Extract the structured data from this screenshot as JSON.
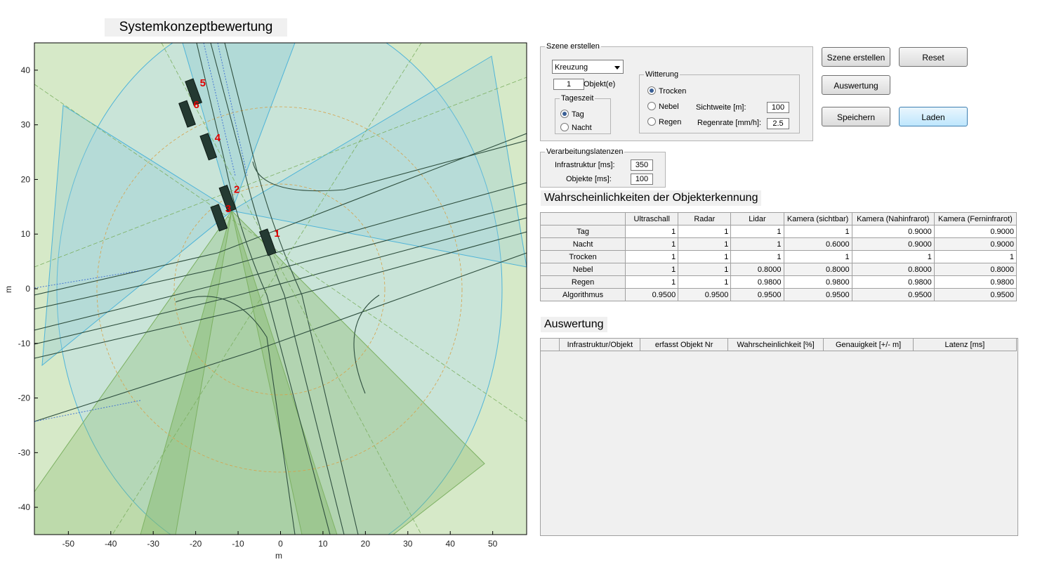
{
  "plot": {
    "title": "Systemkonzeptbewertung",
    "xlabel": "m",
    "ylabel": "m",
    "xticks": [
      -50,
      -40,
      -30,
      -20,
      -10,
      0,
      10,
      20,
      30,
      40,
      50
    ],
    "yticks": [
      40,
      30,
      20,
      10,
      0,
      -10,
      -20,
      -30,
      -40
    ],
    "xlim": [
      -58,
      58
    ],
    "ylim": [
      -45,
      45
    ],
    "objects": [
      {
        "label": "1",
        "x": -3,
        "y": 8.5
      },
      {
        "label": "2",
        "x": -12.5,
        "y": 16.5
      },
      {
        "label": "3",
        "x": -14.5,
        "y": 13
      },
      {
        "label": "4",
        "x": -17,
        "y": 26
      },
      {
        "label": "5",
        "x": -20.5,
        "y": 36
      },
      {
        "label": "6",
        "x": -22,
        "y": 32
      }
    ]
  },
  "scene": {
    "title": "Szene erstellen",
    "dropdown_value": "Kreuzung",
    "object_count": "1",
    "object_label": "Objekt(e)",
    "daytime": {
      "title": "Tageszeit",
      "options": [
        "Tag",
        "Nacht"
      ],
      "selected": 0
    },
    "weather": {
      "title": "Witterung",
      "options": [
        "Trocken",
        "Nebel",
        "Regen"
      ],
      "selected": 0,
      "visibility_label": "Sichtweite [m]:",
      "visibility_value": "100",
      "rainrate_label": "Regenrate [mm/h]:",
      "rainrate_value": "2.5"
    }
  },
  "buttons": {
    "create": "Szene erstellen",
    "reset": "Reset",
    "evaluate": "Auswertung",
    "save": "Speichern",
    "load": "Laden"
  },
  "latency": {
    "title": "Verarbeitungslatenzen",
    "infra_label": "Infrastruktur [ms]:",
    "infra_value": "350",
    "objects_label": "Objekte [ms]:",
    "objects_value": "100"
  },
  "prob": {
    "title": "Wahrscheinlichkeiten der Objekterkennung",
    "columns": [
      "Ultraschall",
      "Radar",
      "Lidar",
      "Kamera (sichtbar)",
      "Kamera (Nahinfrarot)",
      "Kamera (Ferninfrarot)"
    ],
    "rows": [
      {
        "name": "Tag",
        "values": [
          "1",
          "1",
          "1",
          "1",
          "0.9000",
          "0.9000"
        ]
      },
      {
        "name": "Nacht",
        "values": [
          "1",
          "1",
          "1",
          "0.6000",
          "0.9000",
          "0.9000"
        ]
      },
      {
        "name": "Trocken",
        "values": [
          "1",
          "1",
          "1",
          "1",
          "1",
          "1"
        ]
      },
      {
        "name": "Nebel",
        "values": [
          "1",
          "1",
          "0.8000",
          "0.8000",
          "0.8000",
          "0.8000"
        ]
      },
      {
        "name": "Regen",
        "values": [
          "1",
          "1",
          "0.9800",
          "0.9800",
          "0.9800",
          "0.9800"
        ]
      },
      {
        "name": "Algorithmus",
        "values": [
          "0.9500",
          "0.9500",
          "0.9500",
          "0.9500",
          "0.9500",
          "0.9500"
        ]
      }
    ]
  },
  "eval": {
    "title": "Auswertung",
    "columns": [
      "Infrastruktur/Objekt",
      "erfasst Objekt Nr",
      "Wahrscheinlichkeit [%]",
      "Genauigkeit [+/- m]",
      "Latenz [ms]"
    ]
  },
  "colors": {
    "plot_bg": "#d6e9c8",
    "sensor_blue": "#4fb4d8",
    "sensor_green": "#7cb062",
    "vehicle": "#243a32",
    "object_label": "#e00000"
  }
}
